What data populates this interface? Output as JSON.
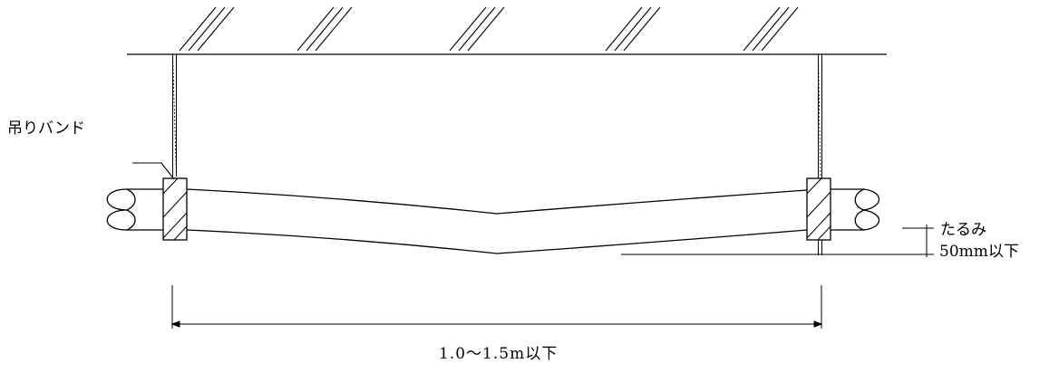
{
  "labels": {
    "hanging_band": "吊りバンド",
    "sag": "たるみ",
    "sag_limit": "50mm以下",
    "support_span": "1.0〜1.5m以下"
  },
  "colors": {
    "line": "#000000",
    "background": "#ffffff"
  }
}
